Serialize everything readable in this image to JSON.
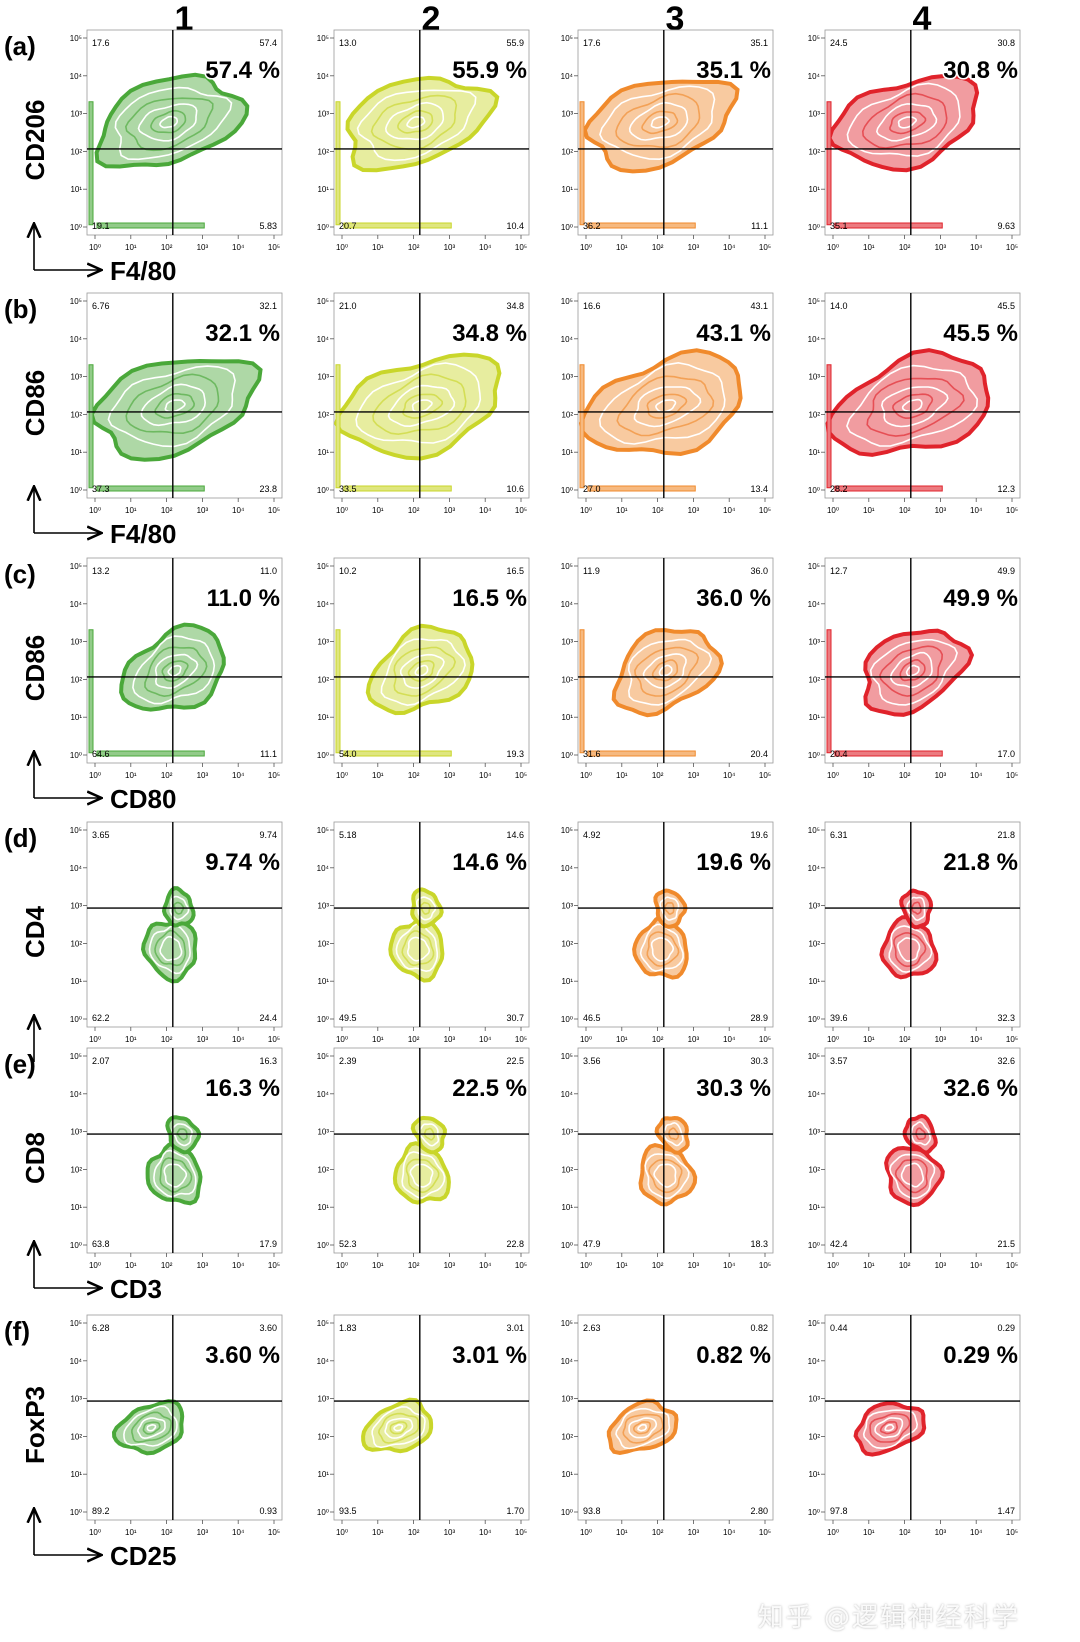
{
  "column_headers": [
    "1",
    "2",
    "3",
    "4"
  ],
  "group_colors": {
    "1": "#4aa83a",
    "2": "#c9d62a",
    "3": "#f08a2c",
    "4": "#e0232b"
  },
  "tick_labels": [
    "10⁰",
    "10¹",
    "10²",
    "10³",
    "10⁴",
    "10⁵"
  ],
  "watermark": "知乎 @逻辑神经科学",
  "chart_data": [
    {
      "type": "contour-quadrant",
      "panel": "(a)",
      "xlabel": "F4/80",
      "ylabel": "CD206",
      "axis_scale": "log",
      "xlim": [
        1,
        100000
      ],
      "ylim": [
        1,
        100000
      ],
      "highlight": [
        "57.4 %",
        "55.9 %",
        "35.1 %",
        "30.8 %"
      ],
      "quadrants": [
        {
          "group": "1",
          "ul": "17.6",
          "ur": "57.4",
          "ll": "19.1",
          "lr": "5.83"
        },
        {
          "group": "2",
          "ul": "13.0",
          "ur": "55.9",
          "ll": "20.7",
          "lr": "10.4"
        },
        {
          "group": "3",
          "ul": "17.6",
          "ur": "35.1",
          "ll": "36.2",
          "lr": "11.1"
        },
        {
          "group": "4",
          "ul": "24.5",
          "ur": "30.8",
          "ll": "35.1",
          "lr": "9.63"
        }
      ]
    },
    {
      "type": "contour-quadrant",
      "panel": "(b)",
      "xlabel": "F4/80",
      "ylabel": "CD86",
      "axis_scale": "log",
      "xlim": [
        1,
        100000
      ],
      "ylim": [
        1,
        100000
      ],
      "highlight": [
        "32.1 %",
        "34.8 %",
        "43.1 %",
        "45.5 %"
      ],
      "quadrants": [
        {
          "group": "1",
          "ul": "6.76",
          "ur": "32.1",
          "ll": "37.3",
          "lr": "23.8"
        },
        {
          "group": "2",
          "ul": "21.0",
          "ur": "34.8",
          "ll": "33.5",
          "lr": "10.6"
        },
        {
          "group": "3",
          "ul": "16.6",
          "ur": "43.1",
          "ll": "27.0",
          "lr": "13.4"
        },
        {
          "group": "4",
          "ul": "14.0",
          "ur": "45.5",
          "ll": "28.2",
          "lr": "12.3"
        }
      ]
    },
    {
      "type": "contour-quadrant",
      "panel": "(c)",
      "xlabel": "CD80",
      "ylabel": "CD86",
      "axis_scale": "log",
      "xlim": [
        1,
        100000
      ],
      "ylim": [
        1,
        100000
      ],
      "highlight": [
        "11.0 %",
        "16.5 %",
        "36.0 %",
        "49.9 %"
      ],
      "quadrants": [
        {
          "group": "1",
          "ul": "13.2",
          "ur": "11.0",
          "ll": "64.6",
          "lr": "11.1"
        },
        {
          "group": "2",
          "ul": "10.2",
          "ur": "16.5",
          "ll": "54.0",
          "lr": "19.3"
        },
        {
          "group": "3",
          "ul": "11.9",
          "ur": "36.0",
          "ll": "31.6",
          "lr": "20.4"
        },
        {
          "group": "4",
          "ul": "12.7",
          "ur": "49.9",
          "ll": "20.4",
          "lr": "17.0"
        }
      ]
    },
    {
      "type": "contour-quadrant",
      "panel": "(d)",
      "xlabel": "",
      "ylabel": "CD4",
      "axis_scale": "log",
      "xlim": [
        1,
        100000
      ],
      "ylim": [
        1,
        100000
      ],
      "highlight": [
        "9.74 %",
        "14.6 %",
        "19.6 %",
        "21.8 %"
      ],
      "quadrants": [
        {
          "group": "1",
          "ul": "3.65",
          "ur": "9.74",
          "ll": "62.2",
          "lr": "24.4"
        },
        {
          "group": "2",
          "ul": "5.18",
          "ur": "14.6",
          "ll": "49.5",
          "lr": "30.7"
        },
        {
          "group": "3",
          "ul": "4.92",
          "ur": "19.6",
          "ll": "46.5",
          "lr": "28.9"
        },
        {
          "group": "4",
          "ul": "6.31",
          "ur": "21.8",
          "ll": "39.6",
          "lr": "32.3"
        }
      ]
    },
    {
      "type": "contour-quadrant",
      "panel": "(e)",
      "xlabel": "CD3",
      "ylabel": "CD8",
      "axis_scale": "log",
      "xlim": [
        1,
        100000
      ],
      "ylim": [
        1,
        100000
      ],
      "highlight": [
        "16.3 %",
        "22.5 %",
        "30.3 %",
        "32.6 %"
      ],
      "quadrants": [
        {
          "group": "1",
          "ul": "2.07",
          "ur": "16.3",
          "ll": "63.8",
          "lr": "17.9"
        },
        {
          "group": "2",
          "ul": "2.39",
          "ur": "22.5",
          "ll": "52.3",
          "lr": "22.8"
        },
        {
          "group": "3",
          "ul": "3.56",
          "ur": "30.3",
          "ll": "47.9",
          "lr": "18.3"
        },
        {
          "group": "4",
          "ul": "3.57",
          "ur": "32.6",
          "ll": "42.4",
          "lr": "21.5"
        }
      ]
    },
    {
      "type": "contour-quadrant",
      "panel": "(f)",
      "xlabel": "CD25",
      "ylabel": "FoxP3",
      "axis_scale": "log",
      "xlim": [
        1,
        100000
      ],
      "ylim": [
        1,
        100000
      ],
      "highlight": [
        "3.60 %",
        "3.01 %",
        "0.82 %",
        "0.29 %"
      ],
      "quadrants": [
        {
          "group": "1",
          "ul": "6.28",
          "ur": "3.60",
          "ll": "89.2",
          "lr": "0.93"
        },
        {
          "group": "2",
          "ul": "1.83",
          "ur": "3.01",
          "ll": "93.5",
          "lr": "1.70"
        },
        {
          "group": "3",
          "ul": "2.63",
          "ur": "0.82",
          "ll": "93.8",
          "lr": "2.80"
        },
        {
          "group": "4",
          "ul": "0.44",
          "ur": "0.29",
          "ll": "97.8",
          "lr": "1.47"
        }
      ]
    }
  ]
}
